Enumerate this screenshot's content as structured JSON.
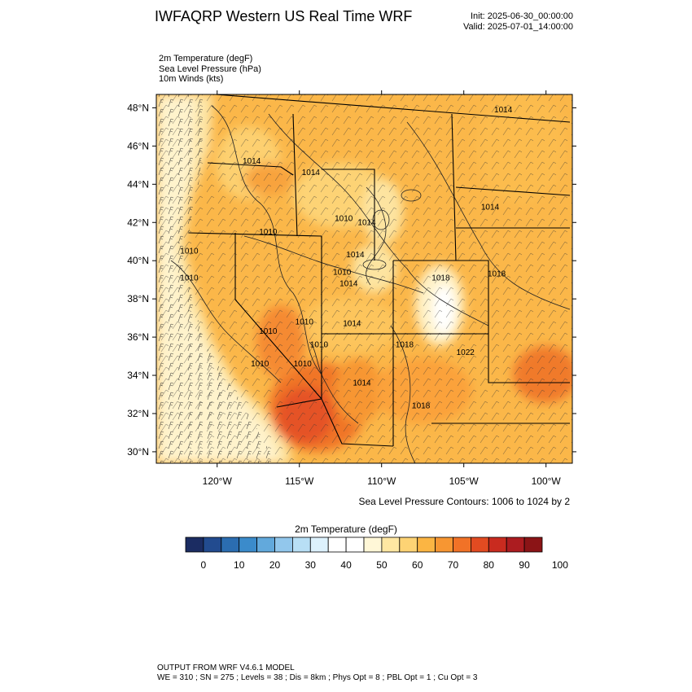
{
  "header": {
    "title": "IWFAQRP Western US Real Time WRF",
    "init": "Init: 2025-06-30_00:00:00",
    "valid": "Valid: 2025-07-01_14:00:00"
  },
  "fields": [
    "2m Temperature   (degF)",
    "Sea Level Pressure   (hPa)",
    "10m Winds   (kts)"
  ],
  "map": {
    "lat_labels": [
      "48°N",
      "46°N",
      "44°N",
      "42°N",
      "40°N",
      "38°N",
      "36°N",
      "34°N",
      "32°N",
      "30°N"
    ],
    "lat_values": [
      48,
      46,
      44,
      42,
      40,
      38,
      36,
      34,
      32,
      30
    ],
    "lon_labels": [
      "120°W",
      "115°W",
      "110°W",
      "105°W",
      "100°W"
    ],
    "lon_values": [
      -120,
      -115,
      -110,
      -105,
      -100
    ],
    "lon_range": [
      -123.7,
      -98.4
    ],
    "lat_range": [
      29.4,
      48.7
    ],
    "pressure_labels": [
      {
        "text": "1014",
        "lon": -102.6,
        "lat": 47.9
      },
      {
        "text": "1014",
        "lon": -117.9,
        "lat": 45.2
      },
      {
        "text": "1014",
        "lon": -114.3,
        "lat": 44.6
      },
      {
        "text": "1010",
        "lon": -112.3,
        "lat": 42.2
      },
      {
        "text": "1010",
        "lon": -116.9,
        "lat": 41.5
      },
      {
        "text": "1014",
        "lon": -110.9,
        "lat": 42.0
      },
      {
        "text": "1014",
        "lon": -103.4,
        "lat": 42.8
      },
      {
        "text": "1010",
        "lon": -121.7,
        "lat": 40.5
      },
      {
        "text": "1010",
        "lon": -121.7,
        "lat": 39.1
      },
      {
        "text": "1014",
        "lon": -111.6,
        "lat": 40.3
      },
      {
        "text": "1010",
        "lon": -112.4,
        "lat": 39.4
      },
      {
        "text": "1014",
        "lon": -112.0,
        "lat": 38.8
      },
      {
        "text": "1018",
        "lon": -103.0,
        "lat": 39.3
      },
      {
        "text": "1018",
        "lon": -106.4,
        "lat": 39.1
      },
      {
        "text": "1010",
        "lon": -116.9,
        "lat": 36.3
      },
      {
        "text": "1010",
        "lon": -114.7,
        "lat": 36.8
      },
      {
        "text": "1014",
        "lon": -111.8,
        "lat": 36.7
      },
      {
        "text": "1010",
        "lon": -113.8,
        "lat": 35.6
      },
      {
        "text": "1018",
        "lon": -108.6,
        "lat": 35.6
      },
      {
        "text": "1022",
        "lon": -104.9,
        "lat": 35.2
      },
      {
        "text": "1010",
        "lon": -117.4,
        "lat": 34.6
      },
      {
        "text": "1010",
        "lon": -114.8,
        "lat": 34.6
      },
      {
        "text": "1014",
        "lon": -111.2,
        "lat": 33.6
      },
      {
        "text": "1018",
        "lon": -107.6,
        "lat": 32.4
      }
    ]
  },
  "contours_note": "Sea Level Pressure Contours: 1006 to 1024 by 2",
  "colorbar": {
    "title": "2m Temperature  (degF)",
    "labels": [
      "0",
      "10",
      "20",
      "30",
      "40",
      "50",
      "60",
      "70",
      "80",
      "90",
      "100"
    ],
    "colors": [
      "#1b2c62",
      "#224b8f",
      "#2b6db1",
      "#3b8bcb",
      "#62a9dc",
      "#92c7ec",
      "#b8dff5",
      "#ddf1fc",
      "#ffffff",
      "#ffffff",
      "#fff7d7",
      "#ffe7a2",
      "#fdd374",
      "#fbb543",
      "#f79632",
      "#f17227",
      "#e24b21",
      "#c92b1f",
      "#ac1c20",
      "#8b1416"
    ]
  },
  "footer": {
    "line1": "OUTPUT FROM WRF V4.6.1 MODEL",
    "line2": "WE = 310 ; SN = 275 ; Levels = 38 ; Dis = 8km ; Phys Opt = 8 ; PBL Opt = 1 ; Cu Opt = 3"
  }
}
